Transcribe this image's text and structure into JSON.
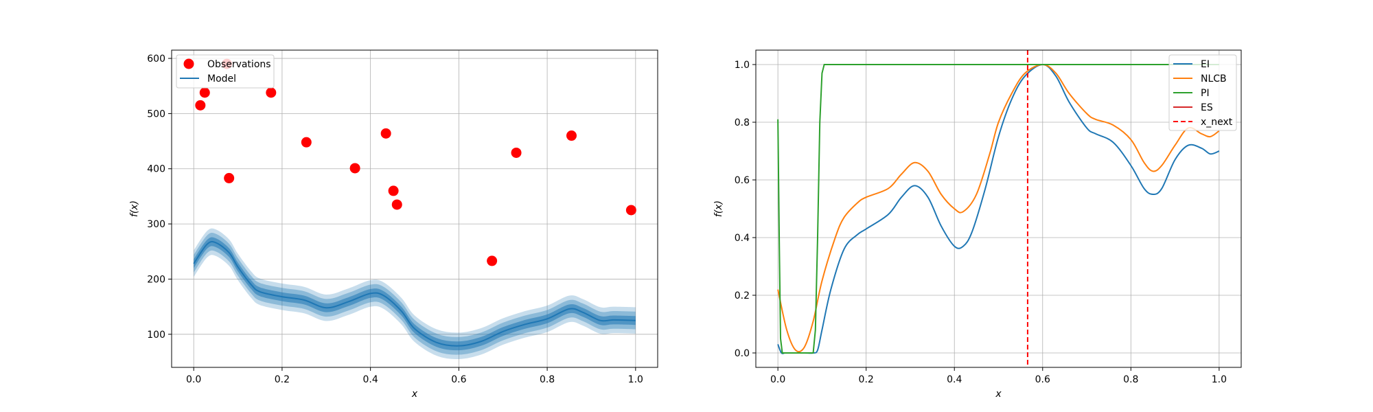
{
  "chart_data": [
    {
      "type": "scatter",
      "title": "",
      "xlabel": "x",
      "ylabel": "f(x)",
      "xlim": [
        -0.05,
        1.05
      ],
      "ylim": [
        40,
        615
      ],
      "xticks": [
        0.0,
        0.2,
        0.4,
        0.6,
        0.8,
        1.0
      ],
      "xtick_labels": [
        "0.0",
        "0.2",
        "0.4",
        "0.6",
        "0.8",
        "1.0"
      ],
      "yticks": [
        100,
        200,
        300,
        400,
        500,
        600
      ],
      "ytick_labels": [
        "100",
        "200",
        "300",
        "400",
        "500",
        "600"
      ],
      "grid": true,
      "legend_position": "top-left",
      "legend": [
        "Observations",
        "Model"
      ],
      "observations": {
        "name": "Observations",
        "color": "#ff0000",
        "x": [
          0.015,
          0.025,
          0.075,
          0.08,
          0.175,
          0.255,
          0.365,
          0.435,
          0.452,
          0.46,
          0.675,
          0.73,
          0.855,
          0.99
        ],
        "y": [
          515,
          538,
          590,
          383,
          538,
          448,
          401,
          464,
          360,
          335,
          233,
          429,
          460,
          325
        ]
      },
      "model": {
        "name": "Model",
        "color": "#1f77b4",
        "x": [
          0.0,
          0.03,
          0.05,
          0.08,
          0.1,
          0.13,
          0.15,
          0.2,
          0.25,
          0.3,
          0.35,
          0.4,
          0.43,
          0.47,
          0.5,
          0.55,
          0.6,
          0.65,
          0.7,
          0.75,
          0.8,
          0.85,
          0.88,
          0.92,
          0.95,
          1.0
        ],
        "y": [
          228,
          263,
          266,
          248,
          222,
          190,
          177,
          168,
          162,
          148,
          159,
          174,
          170,
          142,
          110,
          85,
          79,
          87,
          105,
          118,
          128,
          146,
          140,
          125,
          126,
          125
        ],
        "uncertainty_bands": [
          8,
          16,
          24
        ]
      }
    },
    {
      "type": "line",
      "title": "",
      "xlabel": "x",
      "ylabel": "f(x)",
      "xlim": [
        -0.05,
        1.05
      ],
      "ylim": [
        -0.05,
        1.05
      ],
      "xticks": [
        0.0,
        0.2,
        0.4,
        0.6,
        0.8,
        1.0
      ],
      "xtick_labels": [
        "0.0",
        "0.2",
        "0.4",
        "0.6",
        "0.8",
        "1.0"
      ],
      "yticks": [
        0.0,
        0.2,
        0.4,
        0.6,
        0.8,
        1.0
      ],
      "ytick_labels": [
        "0.0",
        "0.2",
        "0.4",
        "0.6",
        "0.8",
        "1.0"
      ],
      "grid": true,
      "legend_position": "top-right",
      "legend": [
        "EI",
        "NLCB",
        "PI",
        "ES",
        "x_next"
      ],
      "series": [
        {
          "name": "EI",
          "color": "#1f77b4",
          "x": [
            0.0,
            0.008,
            0.016,
            0.03,
            0.06,
            0.08,
            0.09,
            0.1,
            0.12,
            0.15,
            0.18,
            0.2,
            0.25,
            0.28,
            0.31,
            0.34,
            0.37,
            0.4,
            0.42,
            0.44,
            0.47,
            0.5,
            0.53,
            0.56,
            0.6,
            0.63,
            0.66,
            0.7,
            0.72,
            0.76,
            0.8,
            0.83,
            0.85,
            0.87,
            0.9,
            0.93,
            0.96,
            0.98,
            1.0
          ],
          "y": [
            0.03,
            0.0,
            0.0,
            0.0,
            0.0,
            0.0,
            0.01,
            0.08,
            0.22,
            0.36,
            0.41,
            0.43,
            0.48,
            0.54,
            0.58,
            0.54,
            0.44,
            0.37,
            0.37,
            0.42,
            0.57,
            0.75,
            0.88,
            0.96,
            1.0,
            0.96,
            0.87,
            0.78,
            0.76,
            0.73,
            0.65,
            0.57,
            0.55,
            0.57,
            0.67,
            0.72,
            0.71,
            0.69,
            0.7
          ]
        },
        {
          "name": "NLCB",
          "color": "#ff7f0e",
          "x": [
            0.0,
            0.02,
            0.04,
            0.06,
            0.08,
            0.1,
            0.13,
            0.15,
            0.18,
            0.2,
            0.25,
            0.28,
            0.31,
            0.34,
            0.37,
            0.4,
            0.42,
            0.45,
            0.48,
            0.5,
            0.53,
            0.56,
            0.6,
            0.63,
            0.66,
            0.7,
            0.72,
            0.76,
            0.8,
            0.83,
            0.85,
            0.87,
            0.9,
            0.93,
            0.96,
            0.98,
            1.0
          ],
          "y": [
            0.22,
            0.08,
            0.01,
            0.02,
            0.11,
            0.25,
            0.4,
            0.47,
            0.52,
            0.54,
            0.57,
            0.62,
            0.66,
            0.63,
            0.55,
            0.5,
            0.49,
            0.55,
            0.69,
            0.8,
            0.9,
            0.97,
            1.0,
            0.97,
            0.9,
            0.83,
            0.81,
            0.79,
            0.74,
            0.66,
            0.63,
            0.65,
            0.72,
            0.78,
            0.76,
            0.75,
            0.77
          ]
        },
        {
          "name": "PI",
          "color": "#2ca02c",
          "x": [
            0.0,
            0.003,
            0.006,
            0.01,
            0.08,
            0.085,
            0.09,
            0.095,
            0.1,
            0.105,
            0.11,
            1.0
          ],
          "y": [
            0.81,
            0.4,
            0.05,
            0.0,
            0.0,
            0.08,
            0.4,
            0.8,
            0.97,
            1.0,
            1.0,
            1.0
          ]
        },
        {
          "name": "ES",
          "color": "#d62728",
          "x": [],
          "y": []
        }
      ],
      "vline": {
        "name": "x_next",
        "color": "#ff0000",
        "x": 0.566
      }
    }
  ]
}
